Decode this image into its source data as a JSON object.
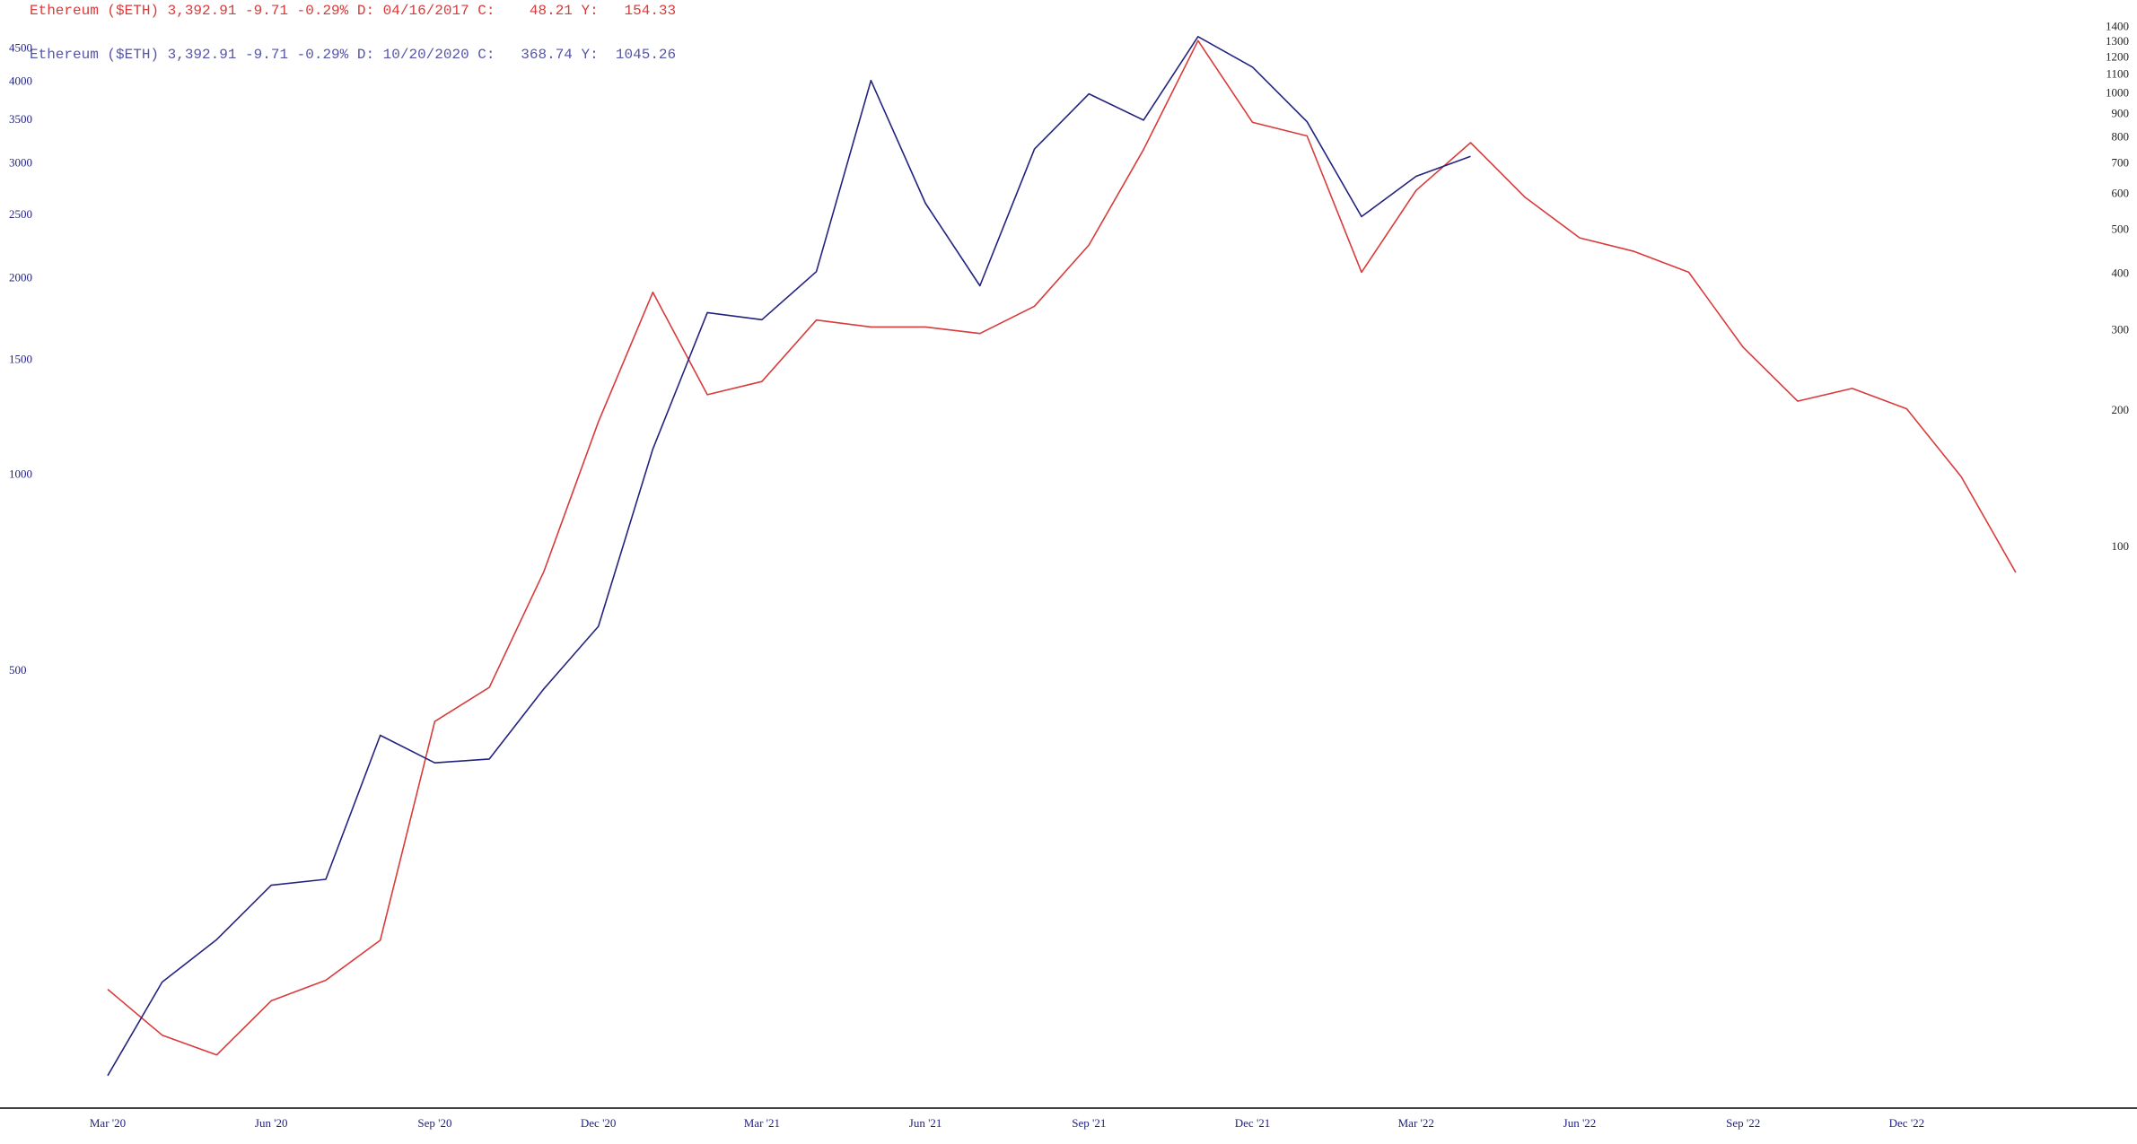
{
  "chart_data": {
    "type": "line",
    "log_scale": true,
    "grid": false,
    "categories": [
      "Mar '20",
      null,
      null,
      "Jun '20",
      null,
      null,
      "Sep '20",
      null,
      null,
      "Dec '20",
      null,
      null,
      "Mar '21",
      null,
      null,
      "Jun '21",
      null,
      null,
      "Sep '21",
      null,
      null,
      "Dec '21",
      null,
      null,
      "Mar '22",
      null,
      null,
      "Jun '22",
      null,
      null,
      "Sep '22",
      null,
      null,
      "Dec '22",
      null,
      null
    ],
    "series": [
      {
        "name": "Ethereum ($ETH) 3,392.91 -9.71 -0.29% D: 04/16/2017 C:    48.21 Y:   154.33",
        "color": "#d93a3a",
        "axis": "y2",
        "values": [
          10.6,
          8.4,
          7.6,
          10,
          11.1,
          13.6,
          41.3,
          49.1,
          88.3,
          189,
          365,
          217,
          232,
          317,
          306,
          306,
          296,
          340,
          464,
          753,
          1309,
          865,
          807,
          404,
          612,
          780,
          591,
          481,
          449,
          404,
          276,
          210,
          224,
          202,
          143,
          88
        ]
      },
      {
        "name": "Ethereum ($ETH) 3,392.91 -9.71 -0.29% D: 10/20/2020 C:   368.74 Y:  1045.26",
        "color": "#23237f",
        "values": [
          120,
          167,
          194,
          235,
          240,
          399,
          362,
          367,
          470,
          586,
          1096,
          1774,
          1730,
          2050,
          4025,
          2610,
          1950,
          3160,
          3840,
          3500,
          4700,
          4220,
          3480,
          2490,
          2870,
          3080,
          null,
          null,
          null,
          null,
          null,
          null,
          null,
          null,
          null,
          null
        ]
      }
    ],
    "ylim": [
      107,
      5100
    ],
    "yticks": [
      500,
      1000,
      1500,
      2000,
      2500,
      3000,
      3500,
      4000,
      4500
    ],
    "y2lim": [
      5.8,
      1503
    ],
    "y2ticks": [
      100,
      200,
      300,
      400,
      500,
      600,
      700,
      800,
      900,
      1000,
      1100,
      1200,
      1300,
      1400
    ]
  }
}
